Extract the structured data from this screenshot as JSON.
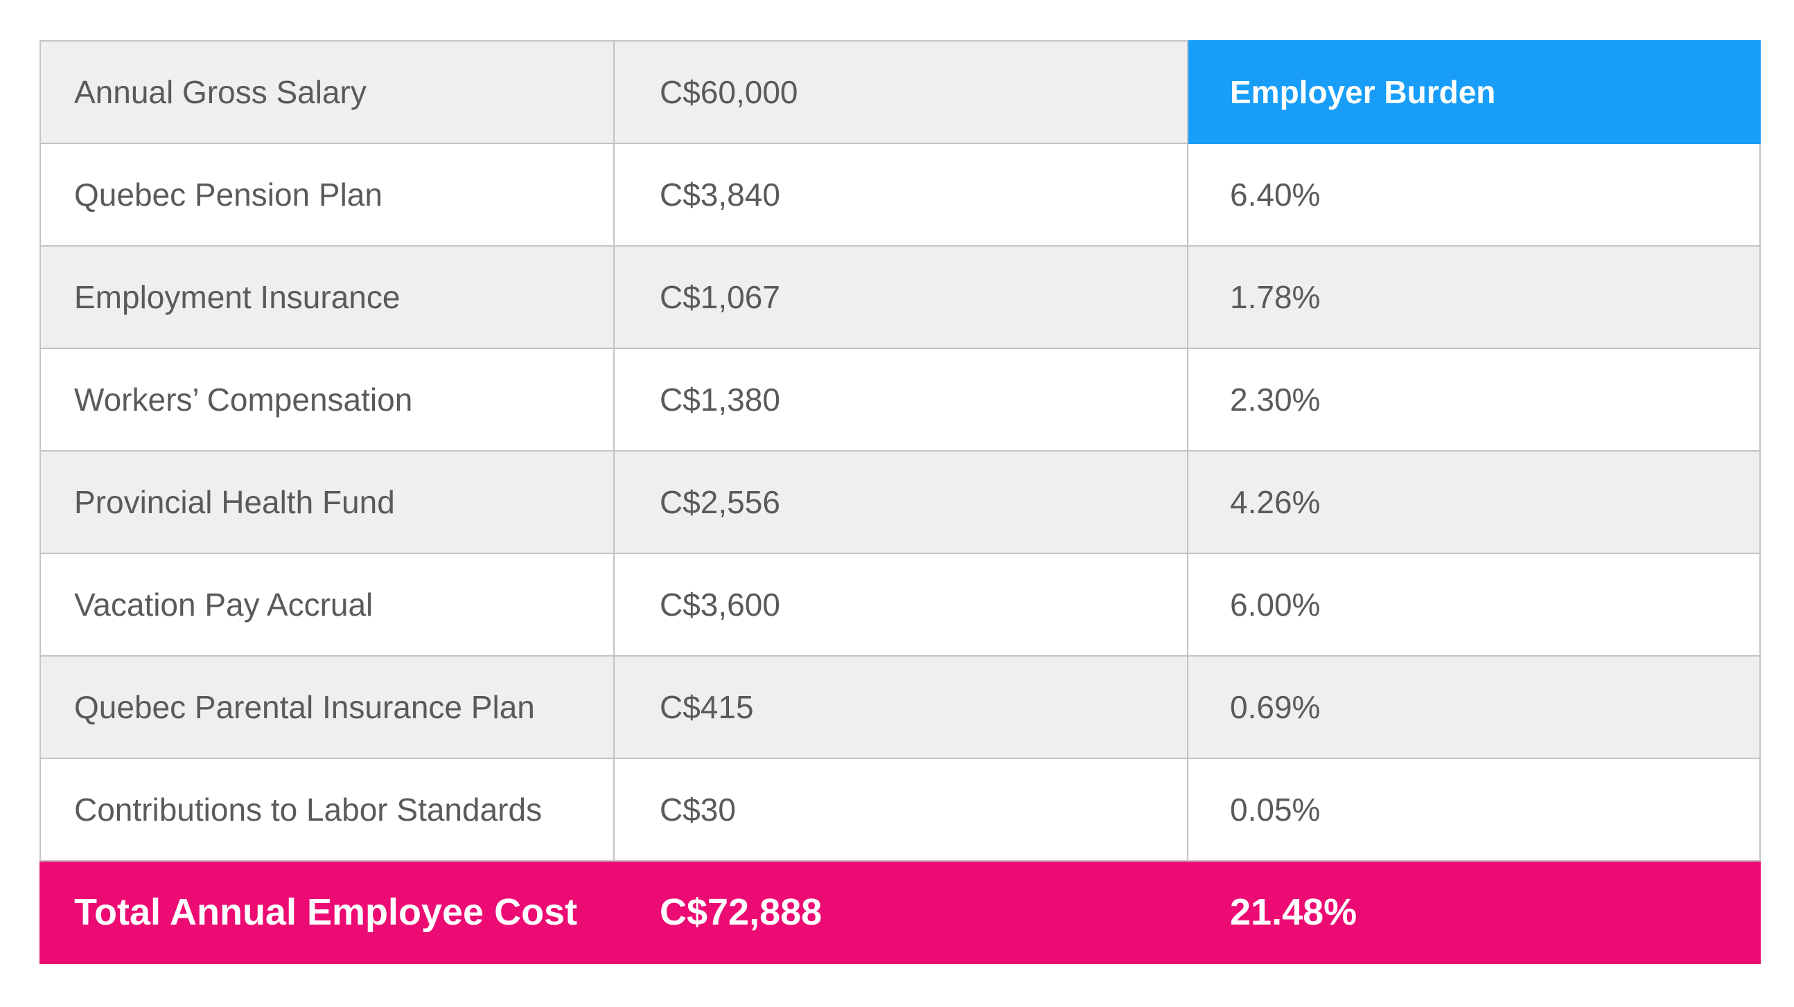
{
  "header": {
    "label": "Annual Gross Salary",
    "amount": "C$60,000",
    "burden_title": "Employer Burden"
  },
  "rows": [
    {
      "label": "Quebec Pension Plan",
      "amount": "C$3,840",
      "rate": "6.40%"
    },
    {
      "label": "Employment Insurance",
      "amount": "C$1,067",
      "rate": "1.78%"
    },
    {
      "label": "Workers’ Compensation",
      "amount": "C$1,380",
      "rate": "2.30%"
    },
    {
      "label": "Provincial Health Fund",
      "amount": "C$2,556",
      "rate": "4.26%"
    },
    {
      "label": "Vacation Pay Accrual",
      "amount": "C$3,600",
      "rate": "6.00%"
    },
    {
      "label": "Quebec Parental Insurance Plan",
      "amount": "C$415",
      "rate": "0.69%"
    },
    {
      "label": "Contributions to Labor Standards",
      "amount": "C$30",
      "rate": "0.05%"
    }
  ],
  "total": {
    "label": "Total Annual Employee Cost",
    "amount": "C$72,888",
    "rate": "21.48%"
  },
  "colors": {
    "header_accent": "#189ef8",
    "total_accent": "#ec0a73",
    "shaded_row": "#efefef",
    "text": "#5a5a5a",
    "border": "#c4c4c4"
  }
}
